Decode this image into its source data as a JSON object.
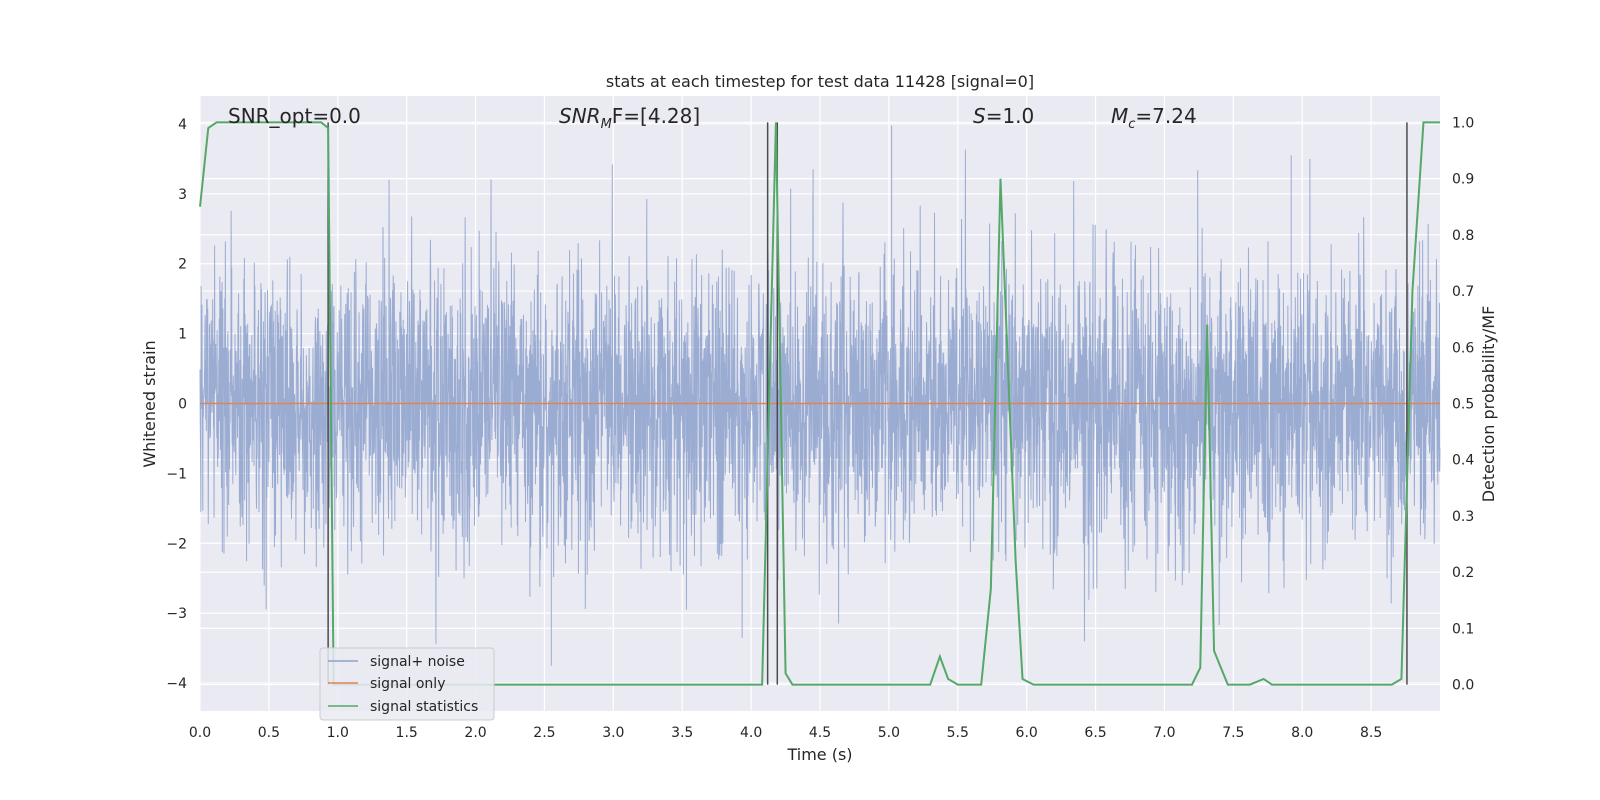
{
  "chart_data": {
    "type": "line",
    "title": "stats at each timestep for test data 11428 [signal=0]",
    "xlabel": "Time (s)",
    "ylabel": "Whitened strain",
    "y2label": "Detection probability/MF",
    "xlim": [
      0,
      9
    ],
    "ylim": [
      -4.4,
      4.4
    ],
    "y2lim": [
      -0.047,
      1.047
    ],
    "xticks": [
      "0.0",
      "0.5",
      "1.0",
      "1.5",
      "2.0",
      "2.5",
      "3.0",
      "3.5",
      "4.0",
      "4.5",
      "5.0",
      "5.5",
      "6.0",
      "6.5",
      "7.0",
      "7.5",
      "8.0",
      "8.5"
    ],
    "yticks": [
      "4",
      "3",
      "2",
      "1",
      "0",
      "−1",
      "−2",
      "−3",
      "−4"
    ],
    "y2ticks": [
      "1.0",
      "0.9",
      "0.8",
      "0.7",
      "0.6",
      "0.5",
      "0.4",
      "0.3",
      "0.2",
      "0.1",
      "0.0"
    ],
    "grid": true,
    "legend_position": "lower-left",
    "annotations": {
      "snr_opt": "SNR_opt=0.0",
      "snr_mf_main": "SNR",
      "snr_mf_sub": "M",
      "snr_mf_rest": "F=[4.28]",
      "s_main": "S",
      "s_rest": "=1.0",
      "mc_main": "M",
      "mc_sub": "c",
      "mc_rest": "=7.24"
    },
    "series": [
      {
        "name": "signal+ noise",
        "color": "#8da1cd",
        "kind": "noise",
        "seed": 11428,
        "n": 4500,
        "envelope": 1.6,
        "range": [
          -3.8,
          4.0
        ],
        "spikes": [
          [
            2.55,
            -3.75
          ],
          [
            5.02,
            3.98
          ],
          [
            4.45,
            3.35
          ],
          [
            7.92,
            3.55
          ]
        ]
      },
      {
        "name": "signal only",
        "color": "#dd8452",
        "kind": "line",
        "x": [
          0,
          9
        ],
        "y": [
          0,
          0
        ]
      },
      {
        "name": "signal statistics",
        "color": "#55a868",
        "kind": "stats",
        "x": [
          0.0,
          0.06,
          0.12,
          0.5,
          0.88,
          0.93,
          0.97,
          1.0,
          2.0,
          3.0,
          4.0,
          4.08,
          4.18,
          4.25,
          4.3,
          5.0,
          5.3,
          5.37,
          5.43,
          5.5,
          5.67,
          5.74,
          5.81,
          5.92,
          5.97,
          6.05,
          7.0,
          7.2,
          7.26,
          7.31,
          7.36,
          7.46,
          7.62,
          7.72,
          7.78,
          8.5,
          8.65,
          8.72,
          8.8,
          8.88,
          9.0
        ],
        "y": [
          0.85,
          0.99,
          1.0,
          1.0,
          1.0,
          0.99,
          0.0,
          0.0,
          0.0,
          0.0,
          0.0,
          0.0,
          1.0,
          0.02,
          0.0,
          0.0,
          0.0,
          0.05,
          0.01,
          0.0,
          0.0,
          0.17,
          0.9,
          0.22,
          0.01,
          0.0,
          0.0,
          0.0,
          0.03,
          0.64,
          0.06,
          0.0,
          0.0,
          0.01,
          0.0,
          0.0,
          0.0,
          0.01,
          0.7,
          1.0,
          1.0
        ]
      }
    ],
    "vlines": [
      0.93,
      4.12,
      4.19,
      8.76
    ],
    "vline_color": "#4d4d4d"
  }
}
